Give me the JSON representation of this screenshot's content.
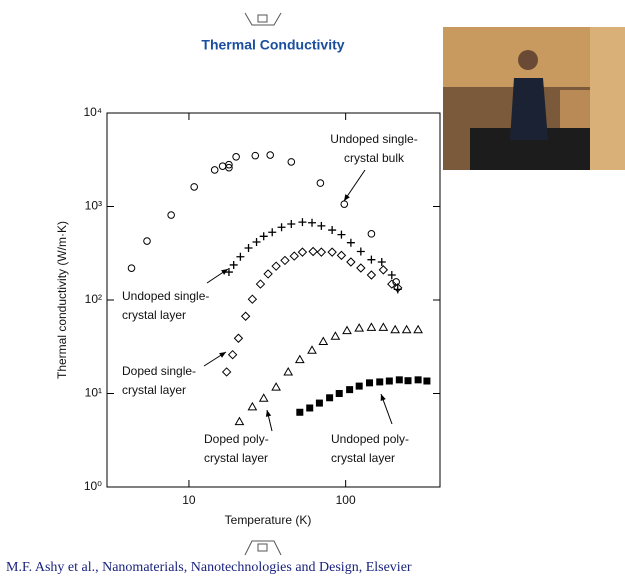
{
  "chart_data": {
    "type": "scatter",
    "title": "Thermal Conductivity",
    "xlabel": "Temperature (K)",
    "ylabel": "Thermal conductivity (W/m·K)",
    "xscale": "log",
    "yscale": "log",
    "xlim": [
      3,
      400
    ],
    "ylim": [
      1,
      10000
    ],
    "xticks": [
      10,
      100
    ],
    "yticks": [
      {
        "value": 1,
        "label": "10⁰"
      },
      {
        "value": 10,
        "label": "10¹"
      },
      {
        "value": 100,
        "label": "10²"
      },
      {
        "value": 1000,
        "label": "10³"
      },
      {
        "value": 10000,
        "label": "10⁴"
      }
    ],
    "series": [
      {
        "name": "Undoped single-\ncrystal bulk",
        "color": "#000000",
        "marker": "circle",
        "x": [
          4.3,
          5.4,
          7.7,
          10.8,
          14.6,
          16.4,
          18,
          18,
          20,
          26.5,
          33,
          45,
          69,
          98,
          146,
          210
        ],
        "values": [
          219,
          427,
          810,
          1620,
          2460,
          2700,
          2800,
          2600,
          3400,
          3500,
          3550,
          3000,
          1780,
          1060,
          510,
          156
        ]
      },
      {
        "name": "Undoped single-\ncrystal layer",
        "color": "#000000",
        "marker": "plus",
        "x": [
          18,
          19.3,
          21.3,
          24,
          27,
          30,
          34,
          39,
          45,
          53,
          61,
          70,
          82,
          94,
          108,
          125,
          146,
          170,
          197,
          215
        ],
        "values": [
          199,
          237,
          290,
          360,
          417,
          480,
          530,
          600,
          650,
          680,
          670,
          620,
          560,
          500,
          410,
          330,
          270,
          255,
          185,
          130
        ]
      },
      {
        "name": "Doped single-\ncrystal layer",
        "color": "#000000",
        "marker": "diamond",
        "x": [
          17.4,
          19,
          20.7,
          23,
          25.4,
          28.6,
          32,
          36,
          41,
          47,
          53,
          62,
          70,
          82,
          94,
          108,
          125,
          146,
          174,
          197,
          215
        ],
        "values": [
          17,
          26,
          39,
          67,
          102,
          148,
          190,
          230,
          265,
          295,
          325,
          330,
          325,
          325,
          300,
          255,
          220,
          185,
          210,
          148,
          135
        ]
      },
      {
        "name": "Doped poly-\ncrystal layer",
        "color": "#000000",
        "marker": "triangle",
        "x": [
          21,
          25.4,
          30,
          36,
          43,
          51,
          61,
          72,
          86,
          102,
          122,
          146,
          174,
          207,
          245,
          290
        ],
        "values": [
          5,
          7.2,
          8.9,
          11.7,
          17,
          23,
          29,
          36,
          41,
          47,
          50,
          51,
          51,
          48,
          48,
          48
        ]
      },
      {
        "name": "Undoped poly-\ncrystal layer",
        "color": "#000000",
        "marker": "square",
        "x": [
          51,
          59,
          68,
          79,
          91,
          106,
          122,
          142,
          165,
          190,
          220,
          250,
          290,
          330
        ],
        "values": [
          6.3,
          7,
          7.9,
          9,
          10,
          11,
          12,
          13,
          13.3,
          13.6,
          14,
          13.7,
          14,
          13.6
        ]
      }
    ]
  },
  "citation": "M.F. Ashy et al., Nanomaterials, Nanotechnologies and Design, Elsevier"
}
